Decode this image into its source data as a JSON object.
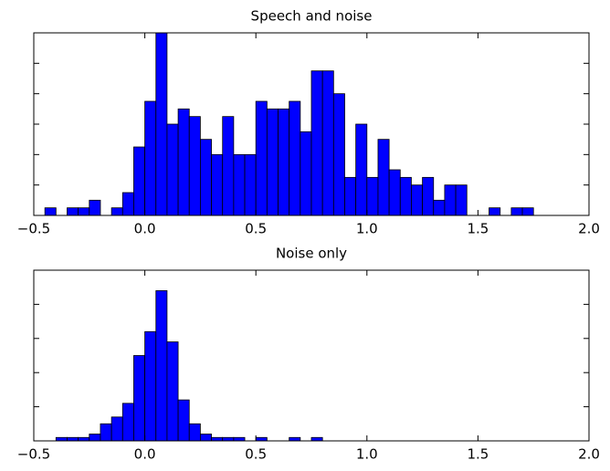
{
  "chart_data": [
    {
      "type": "histogram",
      "title": "Speech and noise",
      "color": "#0000ff",
      "bins": [
        -0.45,
        -0.4,
        -0.35,
        -0.3,
        -0.25,
        -0.2,
        -0.15,
        -0.1,
        -0.05,
        0.0,
        0.05,
        0.1,
        0.15,
        0.2,
        0.25,
        0.3,
        0.35,
        0.4,
        0.45,
        0.5,
        0.55,
        0.6,
        0.65,
        0.7,
        0.75,
        0.8,
        0.85,
        0.9,
        0.95,
        1.0,
        1.05,
        1.1,
        1.15,
        1.2,
        1.25,
        1.3,
        1.35,
        1.4,
        1.45,
        1.5,
        1.55,
        1.6,
        1.65,
        1.7,
        1.75
      ],
      "values": [
        1,
        0,
        1,
        1,
        2,
        0,
        1,
        3,
        9,
        15,
        24,
        12,
        14,
        13,
        10,
        8,
        13,
        8,
        8,
        15,
        14,
        14,
        15,
        11,
        19,
        19,
        16,
        5,
        12,
        5,
        10,
        6,
        5,
        4,
        5,
        2,
        4,
        4,
        0,
        0,
        1,
        0,
        1,
        1
      ],
      "xlim": [
        -0.5,
        2.0
      ],
      "xticks": [
        {
          "value": -0.5,
          "label": "−0.5"
        },
        {
          "value": 0,
          "label": "0.0"
        },
        {
          "value": 0.5,
          "label": "0.5"
        },
        {
          "value": 1,
          "label": "1.0"
        },
        {
          "value": 1.5,
          "label": "1.5"
        },
        {
          "value": 2,
          "label": "2.0"
        }
      ],
      "ylim": [
        0,
        24
      ],
      "yticks": [
        0,
        4,
        8,
        12,
        16,
        20,
        24
      ]
    },
    {
      "type": "histogram",
      "title": "Noise only",
      "color": "#0000ff",
      "bins": [
        -0.4,
        -0.35,
        -0.3,
        -0.25,
        -0.2,
        -0.15,
        -0.1,
        -0.05,
        0.0,
        0.05,
        0.1,
        0.15,
        0.2,
        0.25,
        0.3,
        0.35,
        0.4,
        0.45,
        0.5,
        0.55,
        0.6,
        0.65,
        0.7,
        0.75,
        0.8,
        0.85
      ],
      "values": [
        1,
        1,
        1,
        2,
        5,
        7,
        11,
        25,
        32,
        44,
        29,
        12,
        5,
        2,
        1,
        1,
        1,
        0,
        1,
        0,
        0,
        1,
        0,
        1,
        0
      ],
      "xlim": [
        -0.5,
        2.0
      ],
      "xticks": [
        {
          "value": -0.5,
          "label": "−0.5"
        },
        {
          "value": 0,
          "label": "0.0"
        },
        {
          "value": 0.5,
          "label": "0.5"
        },
        {
          "value": 1,
          "label": "1.0"
        },
        {
          "value": 1.5,
          "label": "1.5"
        },
        {
          "value": 2,
          "label": "2.0"
        }
      ],
      "ylim": [
        0,
        50
      ],
      "yticks": [
        0,
        10,
        20,
        30,
        40,
        50
      ]
    }
  ]
}
